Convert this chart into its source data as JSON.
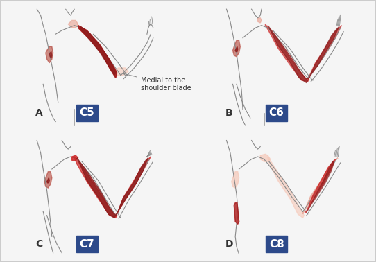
{
  "background_color": "#f5f5f5",
  "border_color": "#cccccc",
  "label_box_color": "#2d4a8a",
  "label_text_color": "#ffffff",
  "label_fontsize": 11,
  "panel_labels": [
    "A",
    "B",
    "C",
    "D"
  ],
  "panel_titles": [
    "C5",
    "C6",
    "C7",
    "C8"
  ],
  "pain_red_dark": "#8b1a1a",
  "pain_red_medium": "#cc2222",
  "pain_pink_light": "#e8a090",
  "pain_pink_very_light": "#f5c8b8",
  "body_line_color": "#888888",
  "annotation_text": "Medial to the\nshoulder blade",
  "annotation_color": "#333333",
  "annotation_fontsize": 7
}
